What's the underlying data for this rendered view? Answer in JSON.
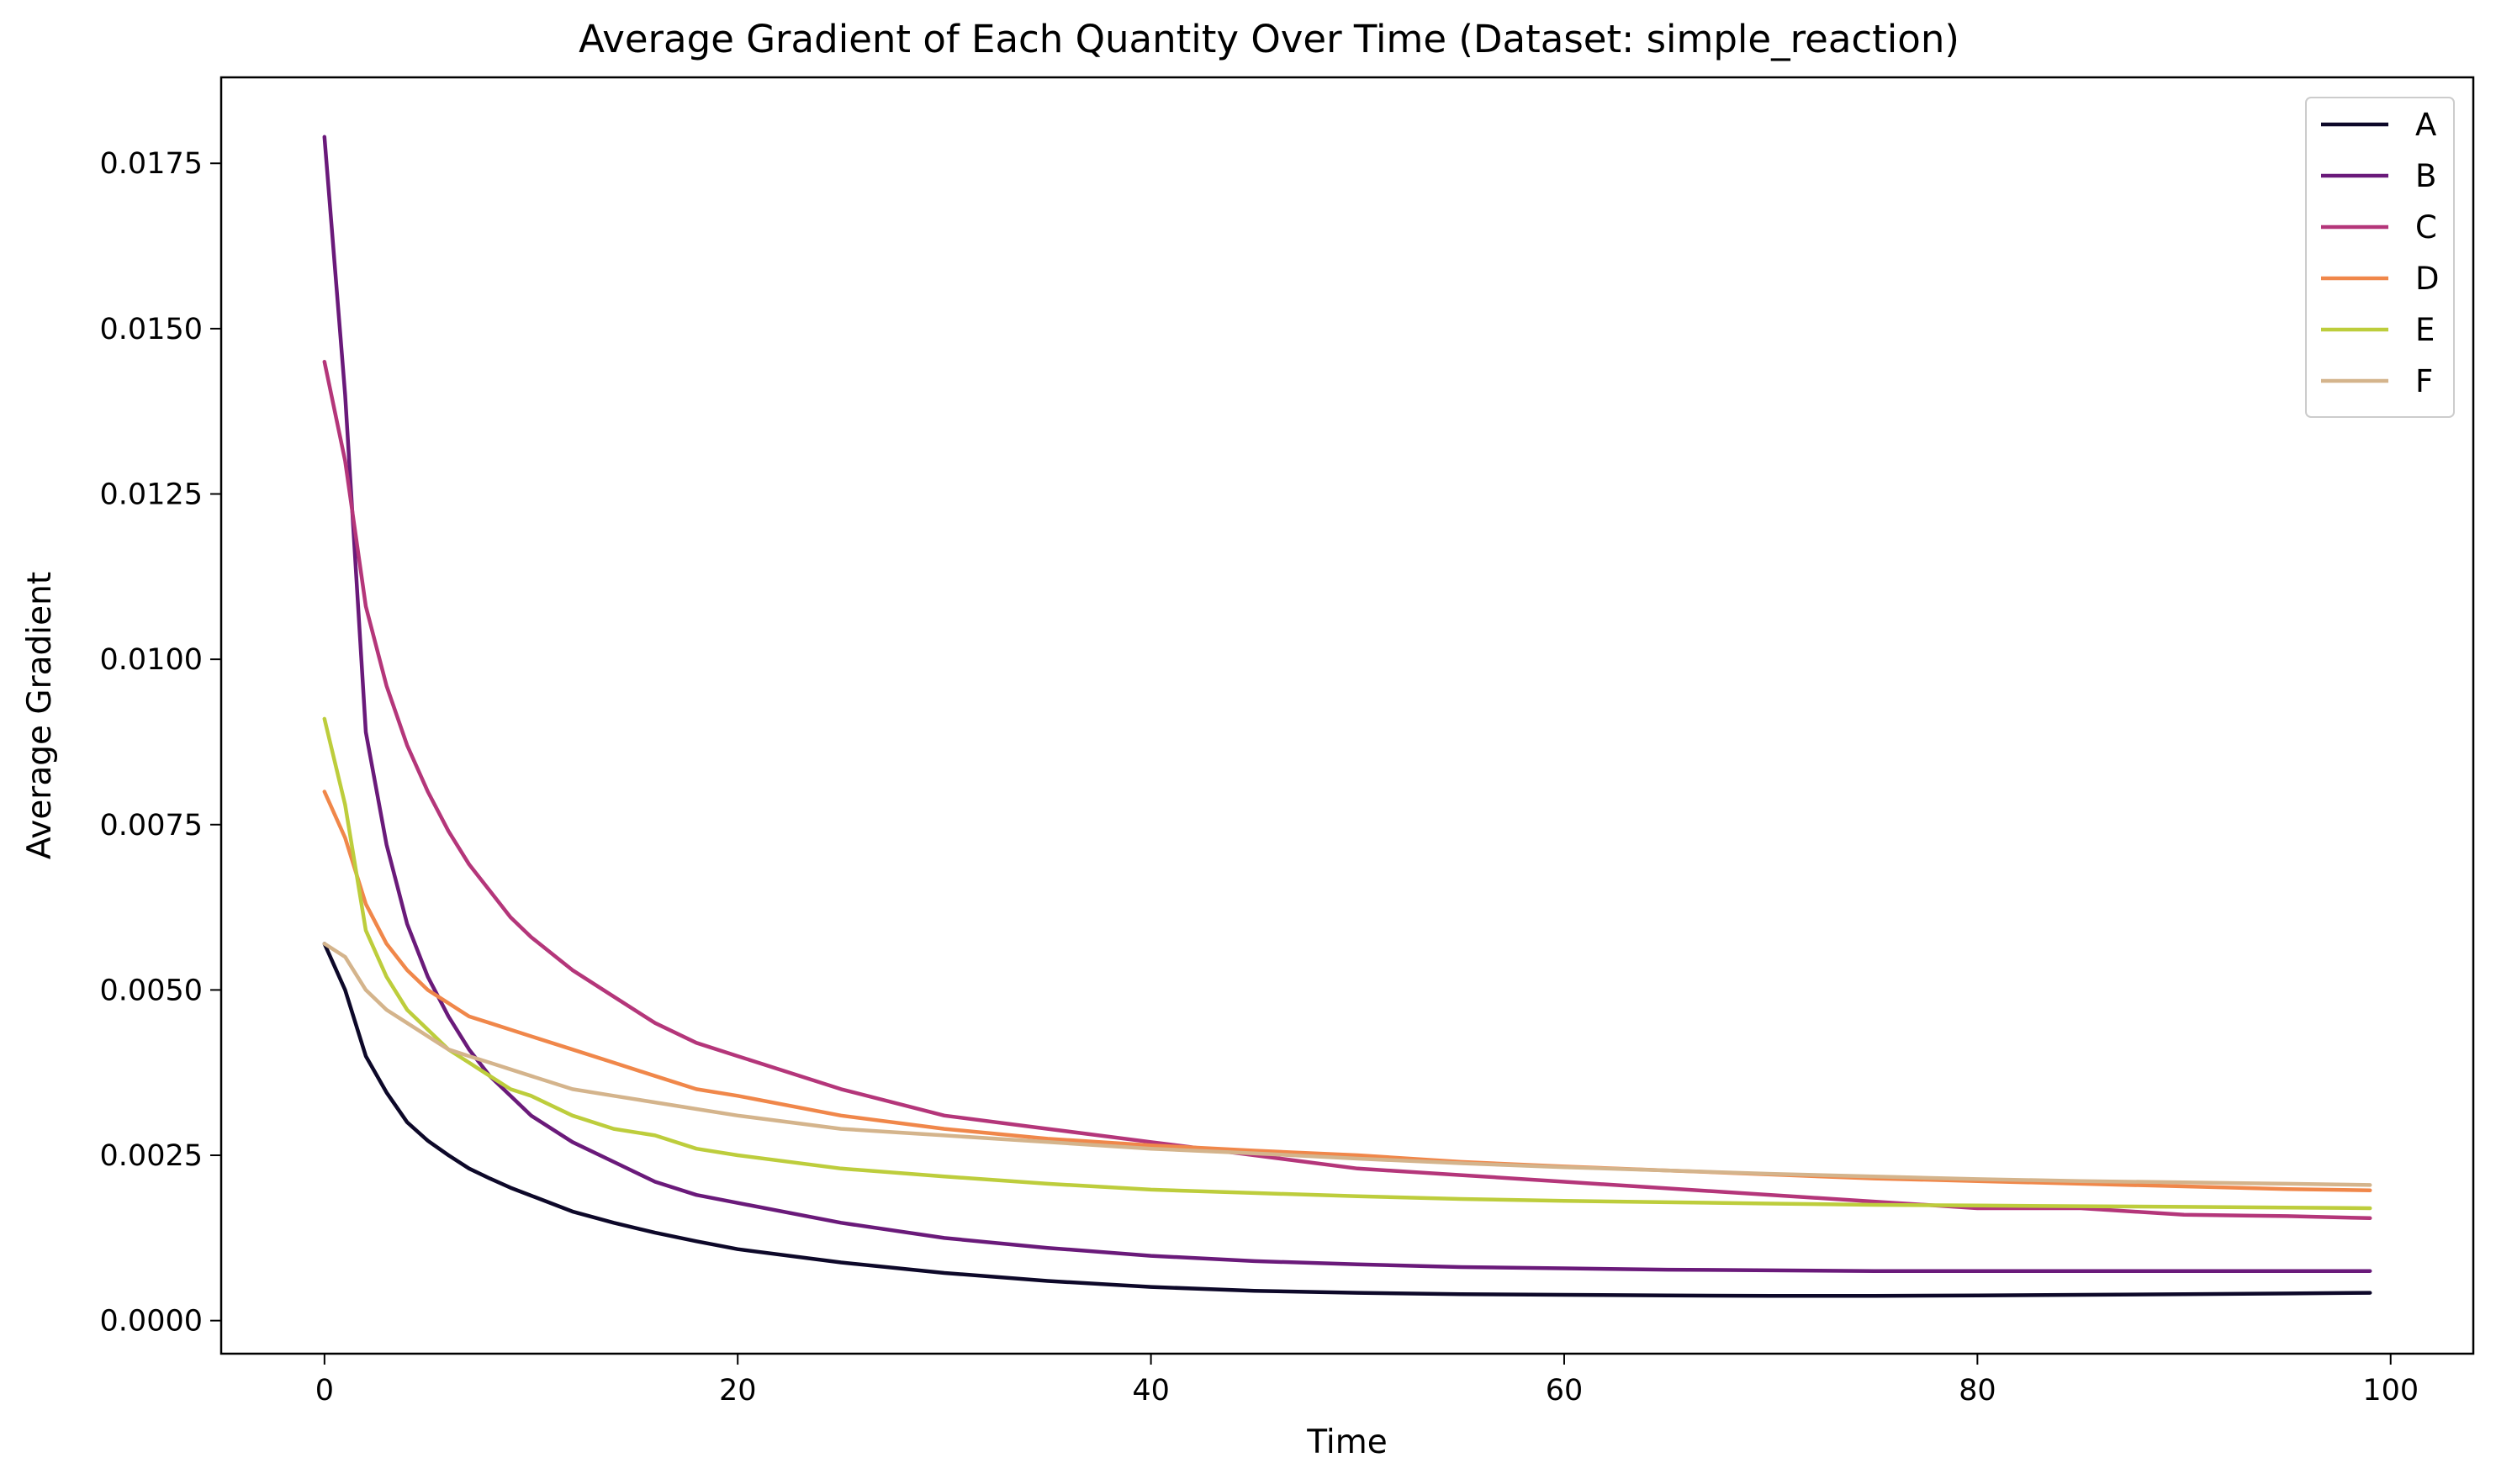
{
  "chart_data": {
    "type": "line",
    "title": "Average Gradient of Each Quantity Over Time (Dataset: simple_reaction)",
    "xlabel": "Time",
    "ylabel": "Average Gradient",
    "xlim": [
      -5,
      104
    ],
    "ylim": [
      -0.0005,
      0.0188
    ],
    "x_ticks": [
      0,
      20,
      40,
      60,
      80,
      100
    ],
    "x_tick_labels": [
      "0",
      "20",
      "40",
      "60",
      "80",
      "100"
    ],
    "y_ticks": [
      0,
      0.0025,
      0.005,
      0.0075,
      0.01,
      0.0125,
      0.015,
      0.0175
    ],
    "y_tick_labels": [
      "0.0000",
      "0.0025",
      "0.0050",
      "0.0075",
      "0.0100",
      "0.0125",
      "0.0150",
      "0.0175"
    ],
    "grid": false,
    "legend_position": "top-right",
    "x": [
      0,
      1,
      2,
      3,
      4,
      5,
      6,
      7,
      8,
      9,
      10,
      12,
      14,
      16,
      18,
      20,
      25,
      30,
      35,
      40,
      45,
      50,
      55,
      60,
      65,
      70,
      75,
      80,
      85,
      90,
      95,
      99
    ],
    "series": [
      {
        "name": "A",
        "color": "#0d0829",
        "values": [
          0.0057,
          0.005,
          0.004,
          0.00345,
          0.003,
          0.00272,
          0.0025,
          0.0023,
          0.00215,
          0.00201,
          0.00189,
          0.00165,
          0.00148,
          0.00133,
          0.0012,
          0.00108,
          0.00088,
          0.00072,
          0.0006,
          0.00051,
          0.00045,
          0.00042,
          0.0004,
          0.00039,
          0.00038,
          0.000375,
          0.000375,
          0.00038,
          0.00039,
          0.0004,
          0.00041,
          0.00042
        ]
      },
      {
        "name": "B",
        "color": "#6a1a7a",
        "values": [
          0.0179,
          0.014,
          0.0089,
          0.0072,
          0.006,
          0.0052,
          0.0046,
          0.0041,
          0.0037,
          0.0034,
          0.0031,
          0.0027,
          0.0024,
          0.0021,
          0.0019,
          0.00178,
          0.00148,
          0.00125,
          0.0011,
          0.00098,
          0.0009,
          0.00085,
          0.00081,
          0.00079,
          0.00077,
          0.00076,
          0.00075,
          0.00075,
          0.00075,
          0.00075,
          0.00075,
          0.00075
        ]
      },
      {
        "name": "C",
        "color": "#b4367a",
        "values": [
          0.0145,
          0.013,
          0.0108,
          0.0096,
          0.0087,
          0.008,
          0.0074,
          0.0069,
          0.0065,
          0.0061,
          0.0058,
          0.0053,
          0.0049,
          0.0045,
          0.0042,
          0.004,
          0.0035,
          0.0031,
          0.0029,
          0.0027,
          0.0025,
          0.0023,
          0.0022,
          0.0021,
          0.002,
          0.0019,
          0.0018,
          0.0017,
          0.0017,
          0.0016,
          0.00158,
          0.00155
        ]
      },
      {
        "name": "D",
        "color": "#f0874a",
        "values": [
          0.008,
          0.0073,
          0.0063,
          0.0057,
          0.0053,
          0.005,
          0.0048,
          0.0046,
          0.0045,
          0.0044,
          0.0043,
          0.0041,
          0.0039,
          0.0037,
          0.0035,
          0.0034,
          0.0031,
          0.0029,
          0.00275,
          0.00265,
          0.00257,
          0.0025,
          0.0024,
          0.00233,
          0.00227,
          0.00221,
          0.00215,
          0.00211,
          0.00207,
          0.00203,
          0.00199,
          0.00197
        ]
      },
      {
        "name": "E",
        "color": "#bdcd3c",
        "values": [
          0.0091,
          0.0078,
          0.0059,
          0.0052,
          0.0047,
          0.0044,
          0.0041,
          0.0039,
          0.0037,
          0.0035,
          0.0034,
          0.0031,
          0.0029,
          0.0028,
          0.0026,
          0.0025,
          0.0023,
          0.00218,
          0.00207,
          0.00198,
          0.00193,
          0.00188,
          0.00184,
          0.00181,
          0.00179,
          0.00177,
          0.00175,
          0.00174,
          0.00173,
          0.00172,
          0.00171,
          0.0017
        ]
      },
      {
        "name": "F",
        "color": "#d4b48c",
        "values": [
          0.0057,
          0.0055,
          0.005,
          0.0047,
          0.0045,
          0.0043,
          0.0041,
          0.004,
          0.0039,
          0.0038,
          0.0037,
          0.0035,
          0.0034,
          0.0033,
          0.0032,
          0.0031,
          0.0029,
          0.0028,
          0.0027,
          0.0026,
          0.00253,
          0.00245,
          0.00238,
          0.00232,
          0.00227,
          0.00222,
          0.00218,
          0.00214,
          0.00211,
          0.00209,
          0.00207,
          0.00205
        ]
      }
    ]
  }
}
